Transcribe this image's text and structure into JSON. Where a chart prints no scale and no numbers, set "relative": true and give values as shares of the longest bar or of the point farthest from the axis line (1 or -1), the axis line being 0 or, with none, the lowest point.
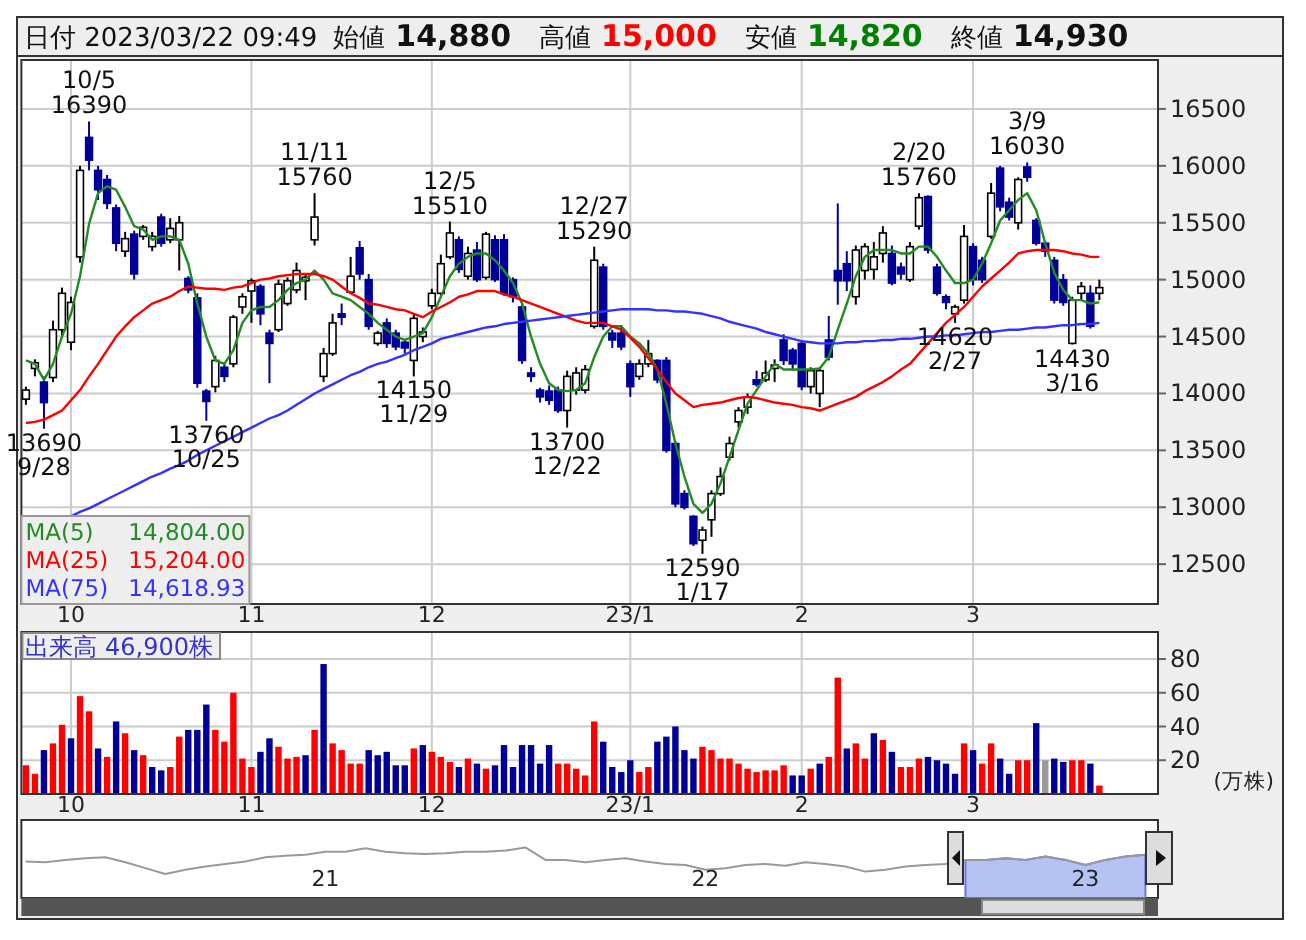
{
  "chart_data": [
    {
      "type": "candlestick",
      "title": "日付 2023/03/22 09:49",
      "subtitle": "始値 14,880 高値 15,000 安値 14,820 終値 14,930",
      "categories": [
        null,
        null,
        null,
        null,
        null,
        "10",
        null,
        null,
        null,
        null,
        null,
        null,
        null,
        null,
        null,
        null,
        null,
        null,
        null,
        null,
        null,
        null,
        null,
        null,
        null,
        "11",
        null,
        null,
        null,
        null,
        null,
        null,
        null,
        null,
        null,
        null,
        null,
        null,
        null,
        null,
        null,
        null,
        null,
        null,
        null,
        "12",
        null,
        null,
        null,
        null,
        null,
        null,
        null,
        null,
        null,
        null,
        null,
        null,
        null,
        null,
        null,
        null,
        null,
        null,
        null,
        null,
        null,
        "23/1",
        null,
        null,
        null,
        null,
        null,
        null,
        null,
        null,
        null,
        null,
        null,
        null,
        null,
        null,
        null,
        null,
        null,
        null,
        "2",
        null,
        null,
        null,
        null,
        null,
        null,
        null,
        null,
        null,
        null,
        null,
        null,
        null,
        null,
        null,
        null,
        null,
        null,
        "3",
        null,
        null,
        null,
        null,
        null,
        null,
        null,
        null,
        null,
        null,
        null,
        null,
        null,
        null,
        null,
        null,
        null,
        null,
        null,
        null
      ],
      "ohlc": [
        [
          13950,
          14060,
          13900,
          14030
        ],
        [
          14220,
          14300,
          14150,
          14270
        ],
        [
          14100,
          14150,
          13690,
          13920
        ],
        [
          14140,
          14640,
          14100,
          14560
        ],
        [
          14560,
          14930,
          14500,
          14880
        ],
        [
          14450,
          14850,
          14380,
          14800
        ],
        [
          15200,
          16000,
          15150,
          15960
        ],
        [
          16250,
          16390,
          15960,
          16050
        ],
        [
          15960,
          16000,
          15700,
          15790
        ],
        [
          15880,
          15920,
          15620,
          15670
        ],
        [
          15630,
          15660,
          15250,
          15320
        ],
        [
          15250,
          15420,
          15200,
          15360
        ],
        [
          15400,
          15430,
          15000,
          15050
        ],
        [
          15380,
          15480,
          15350,
          15460
        ],
        [
          15290,
          15420,
          15250,
          15380
        ],
        [
          15550,
          15580,
          15290,
          15320
        ],
        [
          15350,
          15540,
          15320,
          15450
        ],
        [
          15350,
          15560,
          15080,
          15500
        ],
        [
          15010,
          15030,
          14880,
          14910
        ],
        [
          14840,
          14880,
          14050,
          14090
        ],
        [
          14020,
          14040,
          13760,
          13930
        ],
        [
          14060,
          14330,
          14010,
          14290
        ],
        [
          14230,
          14270,
          14100,
          14150
        ],
        [
          14260,
          14690,
          14230,
          14670
        ],
        [
          14760,
          14880,
          14700,
          14850
        ],
        [
          14900,
          15010,
          14620,
          14990
        ],
        [
          14940,
          14960,
          14600,
          14700
        ],
        [
          14530,
          14560,
          14090,
          14440
        ],
        [
          14560,
          15000,
          14540,
          14960
        ],
        [
          14790,
          15020,
          14770,
          14990
        ],
        [
          14910,
          15150,
          14880,
          15080
        ],
        [
          14990,
          15050,
          14820,
          15020
        ],
        [
          15350,
          15760,
          15300,
          15550
        ],
        [
          14150,
          14400,
          14100,
          14350
        ],
        [
          14350,
          14700,
          14330,
          14620
        ],
        [
          14700,
          14790,
          14600,
          14670
        ],
        [
          14890,
          15200,
          14880,
          15030
        ],
        [
          15280,
          15340,
          15000,
          15050
        ],
        [
          15000,
          15050,
          14560,
          14590
        ],
        [
          14440,
          14550,
          14420,
          14530
        ],
        [
          14620,
          14660,
          14400,
          14440
        ],
        [
          14530,
          14560,
          14380,
          14410
        ],
        [
          14450,
          14480,
          14350,
          14400
        ],
        [
          14290,
          14690,
          14150,
          14660
        ],
        [
          14500,
          14580,
          14450,
          14540
        ],
        [
          14770,
          14920,
          14740,
          14880
        ],
        [
          14880,
          15220,
          14860,
          15140
        ],
        [
          15200,
          15510,
          15180,
          15410
        ],
        [
          15350,
          15380,
          15060,
          15090
        ],
        [
          15030,
          15290,
          15000,
          15230
        ],
        [
          15260,
          15330,
          14980,
          15000
        ],
        [
          15020,
          15420,
          15000,
          15400
        ],
        [
          15350,
          15390,
          14980,
          15000
        ],
        [
          15350,
          15400,
          14860,
          14880
        ],
        [
          15000,
          15020,
          14800,
          14850
        ],
        [
          14760,
          14790,
          14260,
          14290
        ],
        [
          14180,
          14230,
          14100,
          14150
        ],
        [
          14030,
          14050,
          13920,
          13970
        ],
        [
          14020,
          14070,
          13900,
          13940
        ],
        [
          14030,
          14060,
          13830,
          13850
        ],
        [
          13850,
          14200,
          13700,
          14150
        ],
        [
          14030,
          14230,
          13990,
          14180
        ],
        [
          14030,
          14250,
          14000,
          14210
        ],
        [
          14590,
          15290,
          14570,
          15170
        ],
        [
          15110,
          15140,
          14560,
          14590
        ],
        [
          14530,
          14560,
          14400,
          14470
        ],
        [
          14530,
          14600,
          14380,
          14410
        ],
        [
          14260,
          14290,
          13970,
          14060
        ],
        [
          14150,
          14300,
          14120,
          14260
        ],
        [
          14260,
          14470,
          14230,
          14350
        ],
        [
          14290,
          14300,
          14090,
          14120
        ],
        [
          14290,
          14320,
          13480,
          13500
        ],
        [
          13560,
          13580,
          13000,
          13030
        ],
        [
          13120,
          13150,
          12980,
          13000
        ],
        [
          12920,
          12930,
          12660,
          12680
        ],
        [
          12710,
          12830,
          12590,
          12800
        ],
        [
          12890,
          13150,
          12740,
          13120
        ],
        [
          13120,
          13350,
          13100,
          13270
        ],
        [
          13440,
          13620,
          13410,
          13560
        ],
        [
          13750,
          13880,
          13700,
          13850
        ],
        [
          13880,
          14000,
          13820,
          13970
        ],
        [
          14120,
          14200,
          14060,
          14080
        ],
        [
          14120,
          14290,
          14100,
          14180
        ],
        [
          14220,
          14300,
          14100,
          14250
        ],
        [
          14470,
          14520,
          14250,
          14290
        ],
        [
          14380,
          14400,
          14200,
          14260
        ],
        [
          14440,
          14470,
          14030,
          14060
        ],
        [
          14060,
          14230,
          14000,
          14200
        ],
        [
          14000,
          14230,
          13880,
          14200
        ],
        [
          14470,
          14680,
          14290,
          14320
        ],
        [
          15080,
          15670,
          14780,
          14990
        ],
        [
          15140,
          15250,
          14900,
          14990
        ],
        [
          14850,
          15300,
          14780,
          15260
        ],
        [
          15080,
          15320,
          15000,
          15290
        ],
        [
          15090,
          15330,
          15000,
          15200
        ],
        [
          15230,
          15470,
          15150,
          15410
        ],
        [
          15230,
          15300,
          14950,
          14970
        ],
        [
          15110,
          15150,
          15000,
          15050
        ],
        [
          15000,
          15330,
          14980,
          15290
        ],
        [
          15470,
          15760,
          15440,
          15720
        ],
        [
          15730,
          15740,
          15230,
          15260
        ],
        [
          15110,
          15140,
          14860,
          14880
        ],
        [
          14850,
          14870,
          14740,
          14800
        ],
        [
          14700,
          14780,
          14620,
          14760
        ],
        [
          14820,
          15480,
          14790,
          15380
        ],
        [
          15290,
          15320,
          14950,
          15000
        ],
        [
          15170,
          15200,
          14970,
          15000
        ],
        [
          15380,
          15850,
          15360,
          15760
        ],
        [
          15980,
          16000,
          15600,
          15640
        ],
        [
          15680,
          15720,
          15520,
          15550
        ],
        [
          15500,
          15900,
          15440,
          15880
        ],
        [
          15990,
          16030,
          15860,
          15900
        ],
        [
          15520,
          15540,
          15300,
          15320
        ],
        [
          15320,
          15340,
          15200,
          15250
        ],
        [
          15170,
          15200,
          14790,
          14820
        ],
        [
          15000,
          15050,
          14770,
          14800
        ],
        [
          14440,
          14850,
          14430,
          14820
        ],
        [
          14880,
          14980,
          14830,
          14940
        ],
        [
          14880,
          14950,
          14570,
          14590
        ],
        [
          14880,
          15000,
          14820,
          14930
        ],
        null,
        null,
        null,
        null,
        null,
        null
      ],
      "series": [
        {
          "name": "MA(5)",
          "type": "line",
          "color": "#228b22",
          "values": [
            14290,
            14260,
            14120,
            14260,
            14500,
            14700,
            15030,
            15490,
            15760,
            15820,
            15790,
            15640,
            15470,
            15440,
            15350,
            15380,
            15380,
            15350,
            15140,
            14790,
            14500,
            14290,
            14260,
            14380,
            14620,
            14730,
            14760,
            14760,
            14820,
            14910,
            14970,
            15000,
            15080,
            15000,
            14880,
            14850,
            14820,
            14760,
            14700,
            14620,
            14560,
            14500,
            14470,
            14500,
            14530,
            14670,
            14850,
            15030,
            15140,
            15200,
            15230,
            15230,
            15170,
            15080,
            14970,
            14790,
            14500,
            14260,
            14090,
            14030,
            14020,
            14030,
            14090,
            14320,
            14500,
            14590,
            14590,
            14500,
            14440,
            14350,
            14210,
            13910,
            13560,
            13270,
            13030,
            12950,
            13030,
            13210,
            13440,
            13680,
            13910,
            14030,
            14150,
            14260,
            14210,
            14210,
            14210,
            14210,
            14220,
            14320,
            14560,
            14790,
            15030,
            15200,
            15260,
            15260,
            15260,
            15230,
            15230,
            15290,
            15290,
            15200,
            15080,
            14970,
            14970,
            15000,
            15140,
            15320,
            15520,
            15610,
            15700,
            15760,
            15610,
            15320,
            15060,
            14910,
            14820,
            14820,
            14790,
            14800,
            null,
            null,
            null,
            null,
            null,
            null
          ]
        },
        {
          "name": "MA(25)",
          "type": "line",
          "color": "#ff0000",
          "values": [
            13740,
            13750,
            13770,
            13810,
            13850,
            13940,
            14030,
            14150,
            14260,
            14380,
            14500,
            14590,
            14670,
            14730,
            14790,
            14820,
            14850,
            14900,
            14940,
            14930,
            14920,
            14920,
            14910,
            14930,
            14940,
            14970,
            15000,
            15010,
            15030,
            15040,
            15050,
            15050,
            15050,
            15030,
            15000,
            14940,
            14880,
            14840,
            14790,
            14780,
            14760,
            14740,
            14730,
            14700,
            14670,
            14720,
            14760,
            14800,
            14850,
            14870,
            14900,
            14900,
            14900,
            14870,
            14850,
            14820,
            14790,
            14760,
            14730,
            14700,
            14670,
            14640,
            14620,
            14620,
            14620,
            14590,
            14560,
            14490,
            14410,
            14310,
            14210,
            14100,
            14000,
            13940,
            13880,
            13900,
            13910,
            13920,
            13940,
            13960,
            13970,
            13960,
            13940,
            13920,
            13910,
            13900,
            13880,
            13870,
            13850,
            13880,
            13910,
            13940,
            13970,
            14020,
            14060,
            14100,
            14150,
            14210,
            14260,
            14350,
            14440,
            14530,
            14620,
            14690,
            14760,
            14850,
            14940,
            15010,
            15080,
            15150,
            15230,
            15250,
            15260,
            15260,
            15260,
            15250,
            15230,
            15220,
            15200,
            15200,
            null,
            null,
            null,
            null,
            null,
            null
          ]
        },
        {
          "name": "MA(75)",
          "type": "line",
          "color": "#3333ff",
          "values": [
            null,
            null,
            null,
            null,
            null,
            12920,
            12960,
            12990,
            13030,
            13070,
            13110,
            13150,
            13190,
            13230,
            13270,
            13300,
            13340,
            13370,
            13410,
            13460,
            13500,
            13540,
            13580,
            13620,
            13660,
            13700,
            13740,
            13780,
            13810,
            13850,
            13900,
            13950,
            14000,
            14040,
            14080,
            14120,
            14160,
            14190,
            14230,
            14260,
            14280,
            14310,
            14340,
            14380,
            14410,
            14440,
            14480,
            14500,
            14520,
            14540,
            14560,
            14580,
            14590,
            14610,
            14620,
            14630,
            14640,
            14650,
            14660,
            14670,
            14680,
            14690,
            14700,
            14710,
            14720,
            14730,
            14740,
            14740,
            14740,
            14740,
            14730,
            14730,
            14720,
            14720,
            14710,
            14700,
            14680,
            14660,
            14630,
            14610,
            14590,
            14570,
            14540,
            14520,
            14500,
            14480,
            14460,
            14450,
            14440,
            14440,
            14440,
            14450,
            14450,
            14460,
            14460,
            14470,
            14470,
            14480,
            14480,
            14490,
            14500,
            14500,
            14510,
            14510,
            14520,
            14530,
            14540,
            14540,
            14550,
            14560,
            14560,
            14570,
            14580,
            14580,
            14590,
            14600,
            14600,
            14610,
            14610,
            14620,
            null,
            null,
            null,
            null,
            null,
            null
          ]
        }
      ],
      "ylim": [
        12150,
        16930
      ],
      "yticks": [
        12500,
        13000,
        13500,
        14000,
        14500,
        15000,
        15500,
        16000,
        16500
      ],
      "grid": true,
      "legend": "bottom left",
      "annotations": [
        "14,804.00",
        "15,204.00",
        "14,618.93",
        {
          "text": "13690 9/28",
          "y": 13690
        },
        {
          "text": "10/5 16390",
          "y": 16390
        },
        {
          "text": "13760 10/25",
          "y": 13760
        },
        {
          "text": "11/11 15760",
          "y": 15760
        },
        {
          "text": "14150 11/29",
          "y": 14150
        },
        {
          "text": "12/5 15510",
          "y": 15510
        },
        {
          "text": "13700 12/22",
          "y": 13700
        },
        {
          "text": "12/27 15290",
          "y": 15290
        },
        {
          "text": "12590 1/17",
          "y": 12590
        },
        {
          "text": "2/20 15760",
          "y": 15760
        },
        {
          "text": "14620 2/27",
          "y": 14620
        },
        {
          "text": "3/9 16030",
          "y": 16030
        },
        {
          "text": "14430 3/16",
          "y": 14430
        }
      ]
    },
    {
      "type": "bar",
      "title": "出来高 46,900株",
      "ylabel": "(万株)",
      "categories": [
        null,
        null,
        null,
        null,
        null,
        "10",
        null,
        null,
        null,
        null,
        null,
        null,
        null,
        null,
        null,
        null,
        null,
        null,
        null,
        null,
        null,
        null,
        null,
        null,
        null,
        "11",
        null,
        null,
        null,
        null,
        null,
        null,
        null,
        null,
        null,
        null,
        null,
        null,
        null,
        null,
        null,
        null,
        null,
        null,
        null,
        "12",
        null,
        null,
        null,
        null,
        null,
        null,
        null,
        null,
        null,
        null,
        null,
        null,
        null,
        null,
        null,
        null,
        null,
        null,
        null,
        null,
        null,
        "23/1",
        null,
        null,
        null,
        null,
        null,
        null,
        null,
        null,
        null,
        null,
        null,
        null,
        null,
        null,
        null,
        null,
        null,
        null,
        "2",
        null,
        null,
        null,
        null,
        null,
        null,
        null,
        null,
        null,
        null,
        null,
        null,
        null,
        null,
        null,
        null,
        null,
        null,
        "3",
        null,
        null,
        null,
        null,
        null,
        null,
        null,
        null,
        null,
        null,
        null,
        null,
        null,
        null,
        null,
        null,
        null,
        null,
        null,
        null
      ],
      "values": [
        17,
        12,
        26,
        30,
        41,
        33,
        58,
        49,
        27,
        22,
        43,
        36,
        26,
        23,
        16,
        14,
        16,
        34,
        38,
        38,
        53,
        38,
        31,
        60,
        21,
        16,
        25,
        33,
        28,
        21,
        22,
        23,
        38,
        77,
        30,
        26,
        18,
        18,
        26,
        23,
        25,
        17,
        17,
        27,
        29,
        25,
        22,
        19,
        16,
        21,
        18,
        15,
        17,
        29,
        16,
        29,
        29,
        18,
        29,
        18,
        18,
        15,
        11,
        43,
        31,
        16,
        13,
        20,
        13,
        16,
        31,
        34,
        40,
        26,
        21,
        28,
        26,
        21,
        21,
        18,
        15,
        13,
        14,
        14,
        17,
        11,
        11,
        15,
        18,
        22,
        69,
        27,
        30,
        21,
        36,
        32,
        25,
        16,
        16,
        21,
        22,
        20,
        18,
        12,
        30,
        26,
        18,
        30,
        21,
        12,
        20,
        20,
        42,
        20,
        21,
        19,
        20,
        20,
        18,
        5,
        null,
        null,
        null,
        null,
        null,
        null
      ],
      "colors": [
        "#ff0000",
        "#ff0000",
        "#000099",
        "#ff0000",
        "#ff0000",
        "#000099",
        "#ff0000",
        "#ff0000",
        "#000099",
        "#ff0000",
        "#000099",
        "#ff0000",
        "#000099",
        "#ff0000",
        "#000099",
        "#000099",
        "#ff0000",
        "#ff0000",
        "#000099",
        "#000099",
        "#000099",
        "#ff0000",
        "#ff0000",
        "#ff0000",
        "#ff0000",
        "#ff0000",
        "#000099",
        "#000099",
        "#ff0000",
        "#ff0000",
        "#ff0000",
        "#000099",
        "#ff0000",
        "#000099",
        "#ff0000",
        "#ff0000",
        "#ff0000",
        "#ff0000",
        "#000099",
        "#000099",
        "#000099",
        "#000099",
        "#000099",
        "#ff0000",
        "#000099",
        "#ff0000",
        "#ff0000",
        "#ff0000",
        "#000099",
        "#ff0000",
        "#000099",
        "#ff0000",
        "#000099",
        "#000099",
        "#000099",
        "#000099",
        "#000099",
        "#000099",
        "#000099",
        "#ff0000",
        "#ff0000",
        "#ff0000",
        "#ff0000",
        "#ff0000",
        "#000099",
        "#000099",
        "#000099",
        "#000099",
        "#ff0000",
        "#ff0000",
        "#000099",
        "#000099",
        "#000099",
        "#000099",
        "#000099",
        "#ff0000",
        "#ff0000",
        "#ff0000",
        "#ff0000",
        "#ff0000",
        "#ff0000",
        "#ff0000",
        "#ff0000",
        "#ff0000",
        "#ff0000",
        "#000099",
        "#000099",
        "#ff0000",
        "#000099",
        "#ff0000",
        "#ff0000",
        "#000099",
        "#ff0000",
        "#ff0000",
        "#000099",
        "#ff0000",
        "#000099",
        "#ff0000",
        "#ff0000",
        "#ff0000",
        "#000099",
        "#000099",
        "#000099",
        "#000099",
        "#ff0000",
        "#000099",
        "#ff0000",
        "#ff0000",
        "#000099",
        "#000099",
        "#ff0000",
        "#ff0000",
        "#000099",
        "#999999",
        "#000099",
        "#000099",
        "#ff0000",
        "#ff0000",
        "#000099",
        "#ff0000",
        null,
        null,
        null,
        null,
        null,
        null
      ],
      "ylim": [
        0,
        96
      ],
      "yticks": [
        20,
        40,
        60,
        80
      ],
      "grid": true
    },
    {
      "type": "line",
      "relative": true,
      "categories": [
        null,
        null,
        null,
        null,
        null,
        null,
        null,
        null,
        null,
        null,
        null,
        null,
        null,
        null,
        null,
        "21",
        null,
        null,
        null,
        null,
        null,
        null,
        null,
        null,
        null,
        null,
        null,
        null,
        null,
        null,
        null,
        null,
        null,
        null,
        "22",
        null,
        null,
        null,
        null,
        null,
        null,
        null,
        null,
        null,
        null,
        null,
        null,
        null,
        null,
        null,
        null,
        null,
        null,
        "23",
        null,
        null,
        null
      ],
      "series": [
        {
          "type": "line",
          "color": "#999999",
          "values": [
            0.47,
            0.44,
            0.53,
            0.59,
            0.63,
            0.44,
            0.22,
            0,
            0.16,
            0.28,
            0.38,
            0.47,
            0.63,
            0.69,
            0.72,
            0.84,
            0.84,
            0.97,
            0.84,
            0.78,
            0.75,
            0.78,
            0.84,
            0.84,
            0.88,
            1,
            0.53,
            0.53,
            0.44,
            0.53,
            0.59,
            0.47,
            0.38,
            0.34,
            0.16,
            0.22,
            0.34,
            0.38,
            0.31,
            0.44,
            0.38,
            0.28,
            0.09,
            0.16,
            0.28,
            0.34,
            0.38,
            0.53,
            0.53,
            0.59,
            0.53,
            0.66,
            0.53,
            0.34,
            0.53,
            0.66,
            0.72
          ]
        },
        {
          "type": "area",
          "color": "#b4c2f4",
          "values": [
            null,
            null,
            null,
            null,
            null,
            null,
            null,
            null,
            null,
            null,
            null,
            null,
            null,
            null,
            null,
            null,
            null,
            null,
            null,
            null,
            null,
            null,
            null,
            null,
            null,
            null,
            null,
            null,
            null,
            null,
            null,
            null,
            null,
            null,
            null,
            null,
            null,
            null,
            null,
            null,
            null,
            null,
            null,
            null,
            null,
            null,
            null,
            0.53,
            0.53,
            0.59,
            0.53,
            0.66,
            0.53,
            0.34,
            0.53,
            0.66,
            0.72
          ]
        }
      ]
    }
  ]
}
